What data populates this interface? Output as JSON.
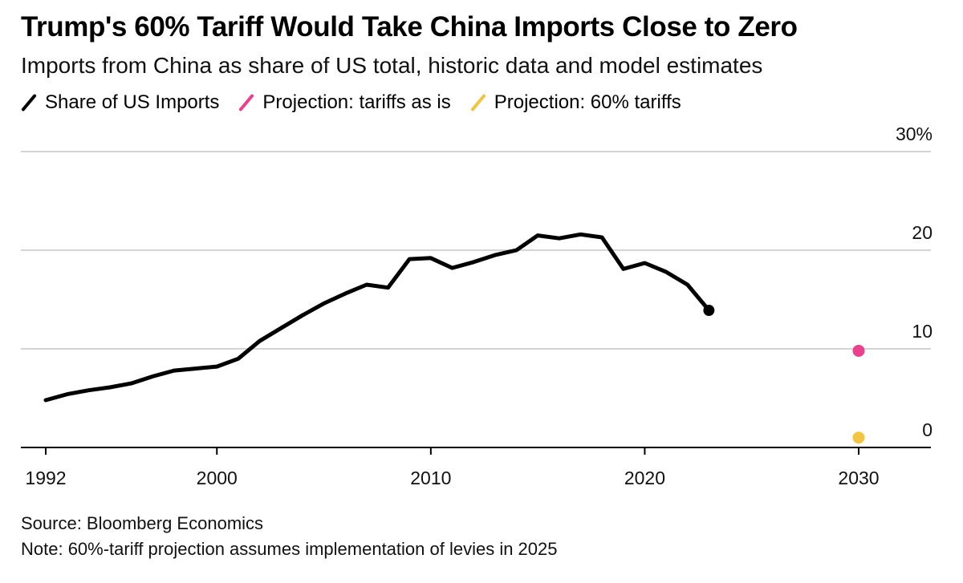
{
  "header": {
    "title": "Trump's 60% Tariff Would Take China Imports Close to Zero",
    "subtitle": "Imports from China as share of US total, historic data and model estimates"
  },
  "legend": [
    {
      "label": "Share of US Imports",
      "color": "#000000"
    },
    {
      "label": "Projection: tariffs as is",
      "color": "#e8418e"
    },
    {
      "label": "Projection: 60% tariffs",
      "color": "#f2c443"
    }
  ],
  "footer": {
    "source": "Source: Bloomberg Economics",
    "note": "Note: 60%-tariff projection assumes implementation of levies in 2025"
  },
  "chart_data": {
    "type": "line",
    "title": "Trump's 60% Tariff Would Take China Imports Close to Zero",
    "xlabel": "",
    "ylabel": "",
    "xlim": [
      1992,
      2032
    ],
    "ylim": [
      0,
      30
    ],
    "x_ticks": [
      {
        "value": 1992,
        "label": "1992"
      },
      {
        "value": 2000,
        "label": "2000"
      },
      {
        "value": 2010,
        "label": "2010"
      },
      {
        "value": 2020,
        "label": "2020"
      },
      {
        "value": 2030,
        "label": "2030"
      }
    ],
    "y_ticks": [
      {
        "value": 0,
        "label": "0"
      },
      {
        "value": 10,
        "label": "10"
      },
      {
        "value": 20,
        "label": "20"
      },
      {
        "value": 30,
        "label": "30%"
      }
    ],
    "grid": true,
    "series": [
      {
        "name": "Share of US Imports",
        "color": "#000000",
        "points": [
          [
            1992,
            4.8
          ],
          [
            1993,
            5.4
          ],
          [
            1994,
            5.8
          ],
          [
            1995,
            6.1
          ],
          [
            1996,
            6.5
          ],
          [
            1997,
            7.2
          ],
          [
            1998,
            7.8
          ],
          [
            1999,
            8.0
          ],
          [
            2000,
            8.2
          ],
          [
            2001,
            9.0
          ],
          [
            2002,
            10.8
          ],
          [
            2003,
            12.1
          ],
          [
            2004,
            13.4
          ],
          [
            2005,
            14.6
          ],
          [
            2006,
            15.6
          ],
          [
            2007,
            16.5
          ],
          [
            2008,
            16.2
          ],
          [
            2009,
            19.1
          ],
          [
            2010,
            19.2
          ],
          [
            2011,
            18.2
          ],
          [
            2012,
            18.8
          ],
          [
            2013,
            19.5
          ],
          [
            2014,
            20.0
          ],
          [
            2015,
            21.5
          ],
          [
            2016,
            21.2
          ],
          [
            2017,
            21.6
          ],
          [
            2018,
            21.3
          ],
          [
            2019,
            18.1
          ],
          [
            2020,
            18.7
          ],
          [
            2021,
            17.8
          ],
          [
            2022,
            16.5
          ],
          [
            2023,
            13.9
          ]
        ],
        "end_marker": true
      },
      {
        "name": "Projection: tariffs as is",
        "color": "#e8418e",
        "points": [
          [
            2030,
            9.8
          ]
        ]
      },
      {
        "name": "Projection: 60% tariffs",
        "color": "#f2c443",
        "points": [
          [
            2030,
            1.0
          ]
        ]
      }
    ]
  }
}
